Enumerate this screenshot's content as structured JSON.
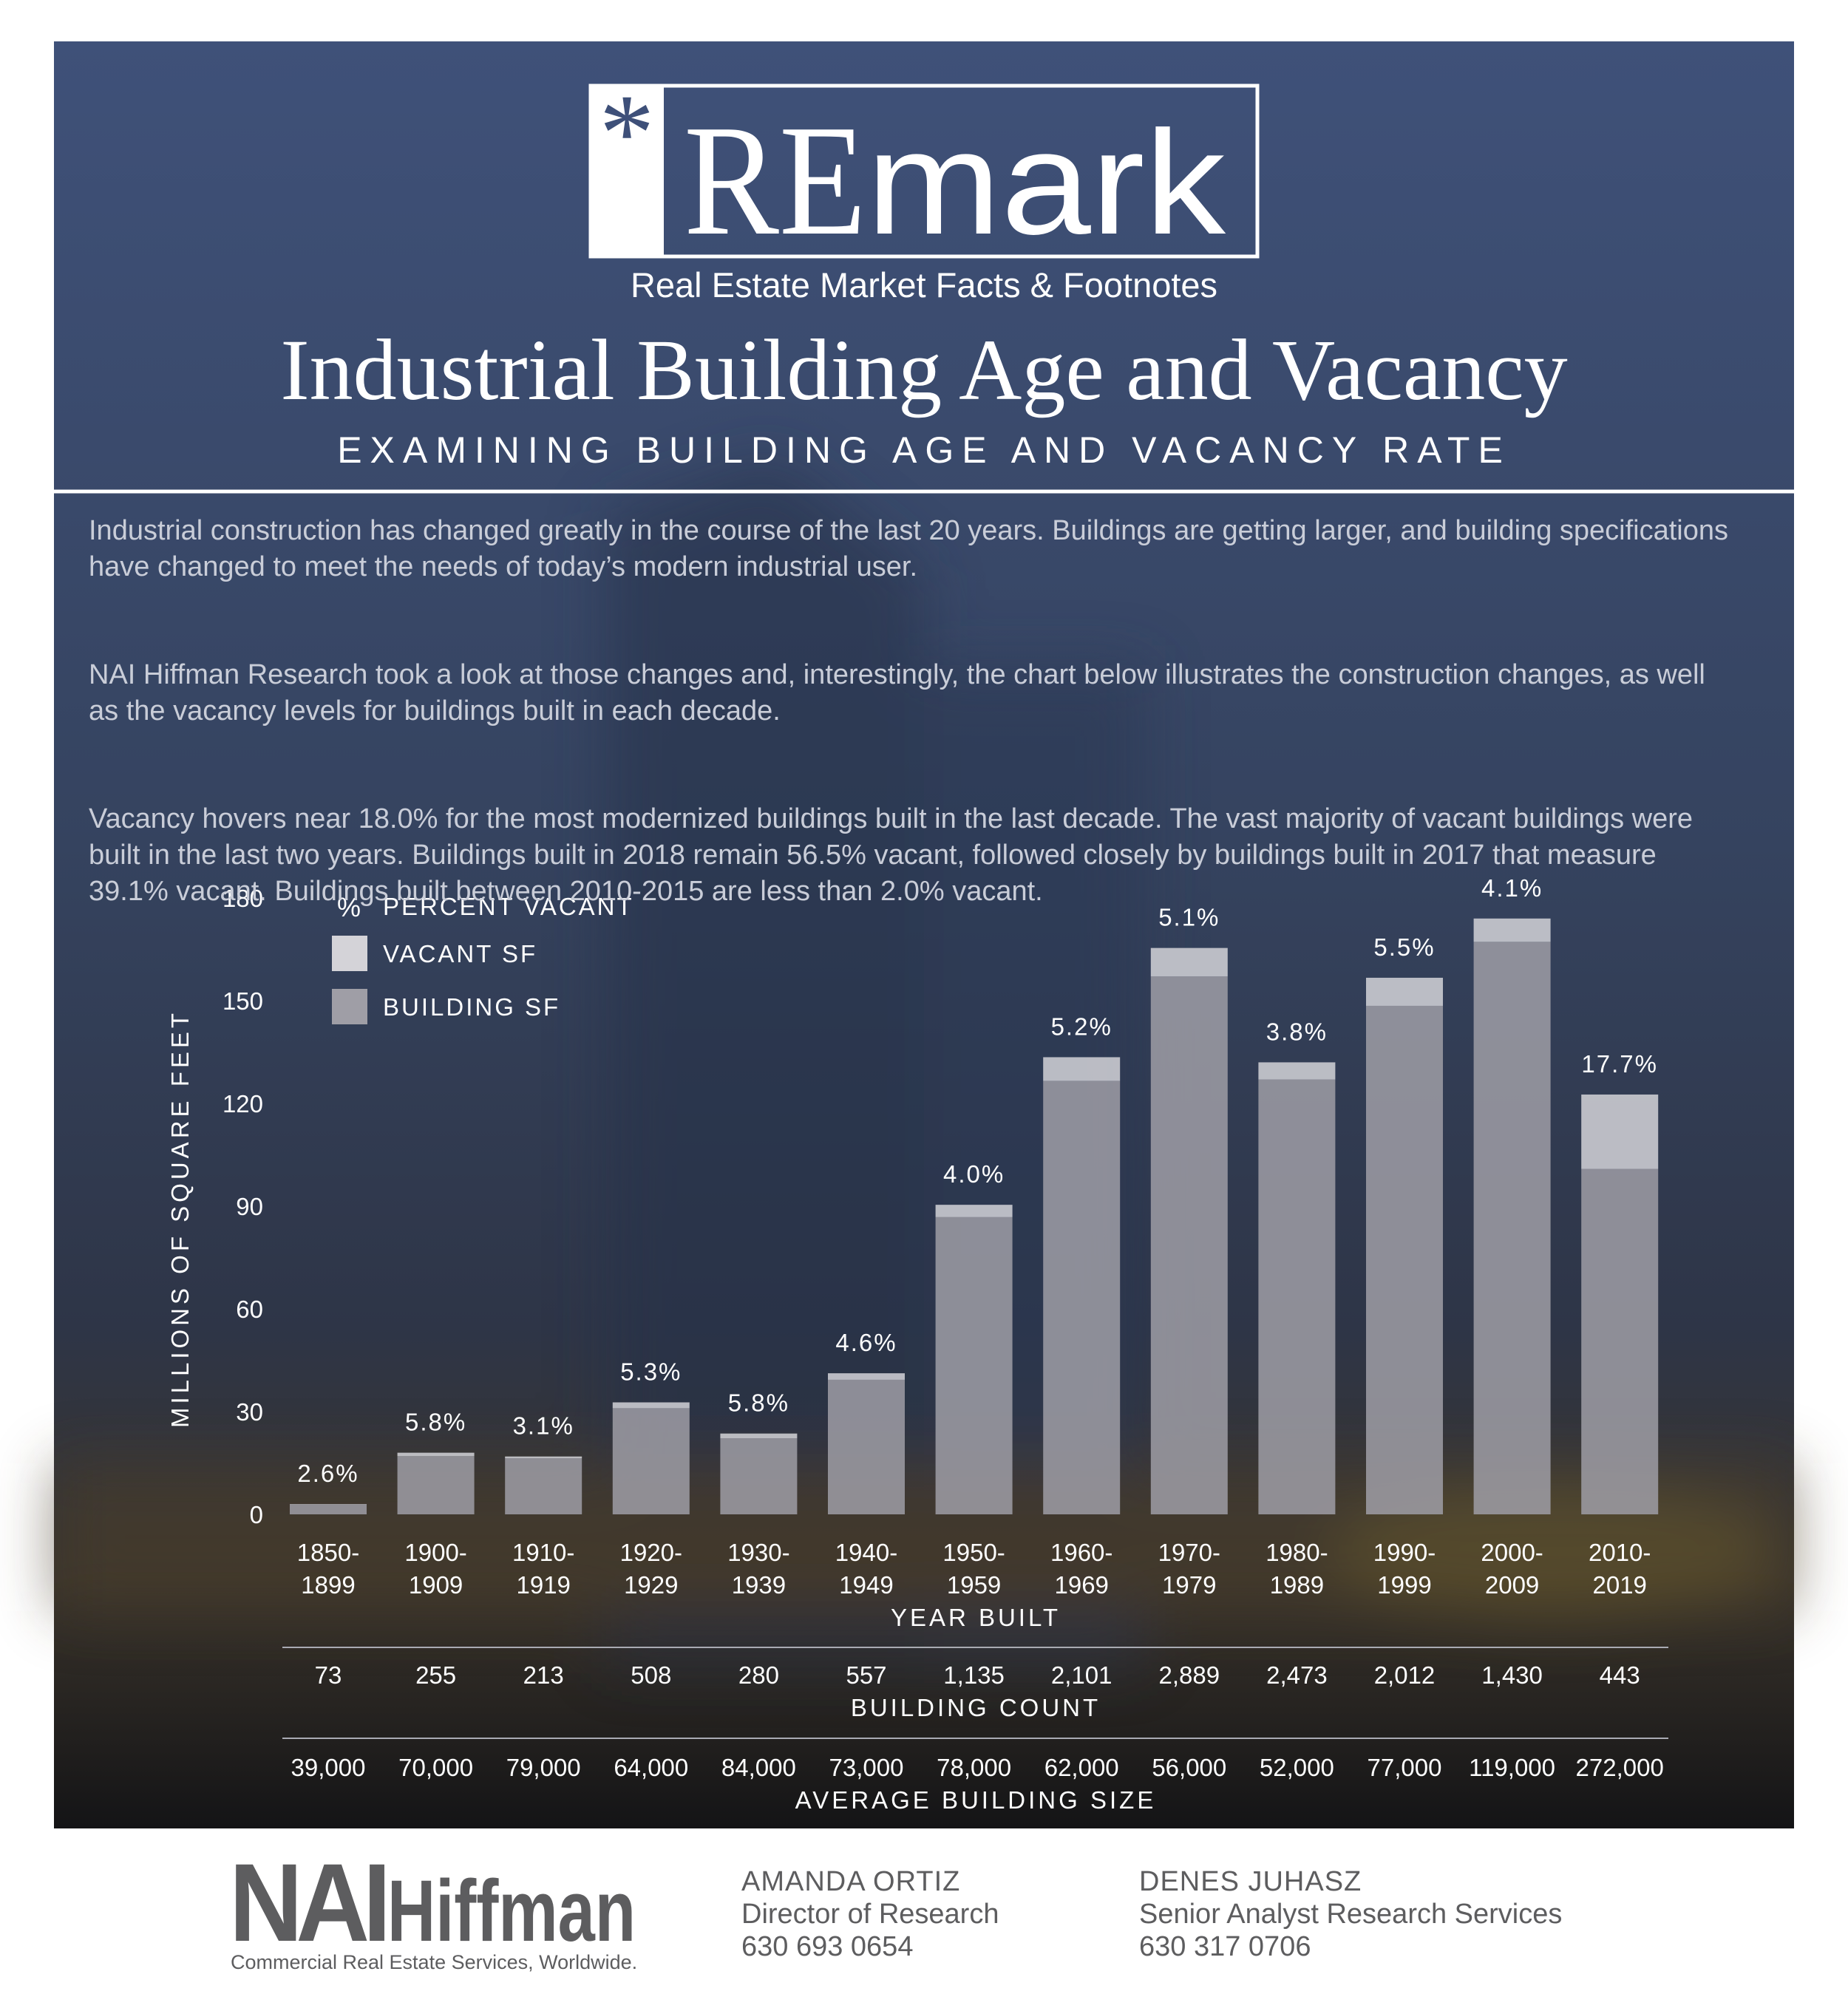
{
  "header": {
    "logo_star": "*",
    "logo_re": "RE",
    "logo_mark": "mark",
    "tagline": "Real Estate Market Facts & Footnotes",
    "title": "Industrial Building Age and Vacancy",
    "subtitle": "EXAMINING BUILDING AGE AND VACANCY RATE"
  },
  "paragraphs": [
    "Industrial construction has changed greatly in the course of the last 20 years. Buildings are getting larger, and building specifications have changed to meet the needs of today’s modern industrial user.",
    "NAI Hiffman Research took a look at those changes and, interestingly, the chart below illustrates the construction changes, as well as the vacancy levels for buildings built in each decade.",
    "Vacancy hovers near 18.0% for the most modernized buildings built in the last decade. The vast majority of vacant buildings were built in the last two years. Buildings built in 2018 remain 56.5% vacant, followed closely by buildings built in 2017 that measure 39.1% vacant. Buildings built between 2010-2015 are less than 2.0% vacant."
  ],
  "chart_data": {
    "type": "bar",
    "stacked": true,
    "y_label": "MILLIONS OF SQUARE FEET",
    "x_label": "YEAR BUILT",
    "categories": [
      "1850-1899",
      "1900-1909",
      "1910-1919",
      "1920-1929",
      "1930-1939",
      "1940-1949",
      "1950-1959",
      "1960-1969",
      "1970-1979",
      "1980-1989",
      "1990-1999",
      "2000-2009",
      "2010-2019"
    ],
    "series": [
      {
        "name": "BUILDING SF",
        "color": "#9f9ea6",
        "values": [
          2.9,
          17,
          16.4,
          31,
          22.2,
          39.3,
          86.8,
          126.6,
          157.1,
          127,
          148.5,
          167.2,
          100.9
        ]
      },
      {
        "name": "VACANT SF",
        "color": "#d4d3d8",
        "values": [
          0.1,
          1,
          0.5,
          1.7,
          1.4,
          1.9,
          3.6,
          6.9,
          8.3,
          5,
          8.2,
          6.8,
          21.7
        ]
      }
    ],
    "percent_vacant": {
      "name": "PERCENT VACANT",
      "symbol": "%",
      "values": [
        2.6,
        5.8,
        3.1,
        5.3,
        5.8,
        4.6,
        4.0,
        5.2,
        5.1,
        3.8,
        5.5,
        4.1,
        17.7
      ],
      "value_labels": [
        "2.6%",
        "5.8%",
        "3.1%",
        "5.3%",
        "5.8%",
        "4.6%",
        "4.0%",
        "5.2%",
        "5.1%",
        "3.8%",
        "5.5%",
        "4.1%",
        "17.7%"
      ]
    },
    "ylim": [
      0,
      180
    ],
    "yticks": [
      0,
      30,
      60,
      90,
      120,
      150,
      180
    ],
    "rows": [
      {
        "label": "BUILDING COUNT",
        "values": [
          "73",
          "255",
          "213",
          "508",
          "280",
          "557",
          "1,135",
          "2,101",
          "2,889",
          "2,473",
          "2,012",
          "1,430",
          "443"
        ]
      },
      {
        "label": "AVERAGE BUILDING SIZE",
        "values": [
          "39,000",
          "70,000",
          "79,000",
          "64,000",
          "84,000",
          "73,000",
          "78,000",
          "62,000",
          "56,000",
          "52,000",
          "77,000",
          "119,000",
          "272,000"
        ]
      }
    ]
  },
  "footer": {
    "logo_nai": "NAI",
    "logo_hiffman": "Hiffman",
    "logo_tagline": "Commercial Real Estate Services, Worldwide.",
    "contacts": [
      {
        "name": "AMANDA ORTIZ",
        "role": "Director of Research",
        "phone": "630 693 0654"
      },
      {
        "name": "DENES JUHASZ",
        "role": "Senior Analyst Research Services",
        "phone": "630 317 0706"
      }
    ]
  }
}
